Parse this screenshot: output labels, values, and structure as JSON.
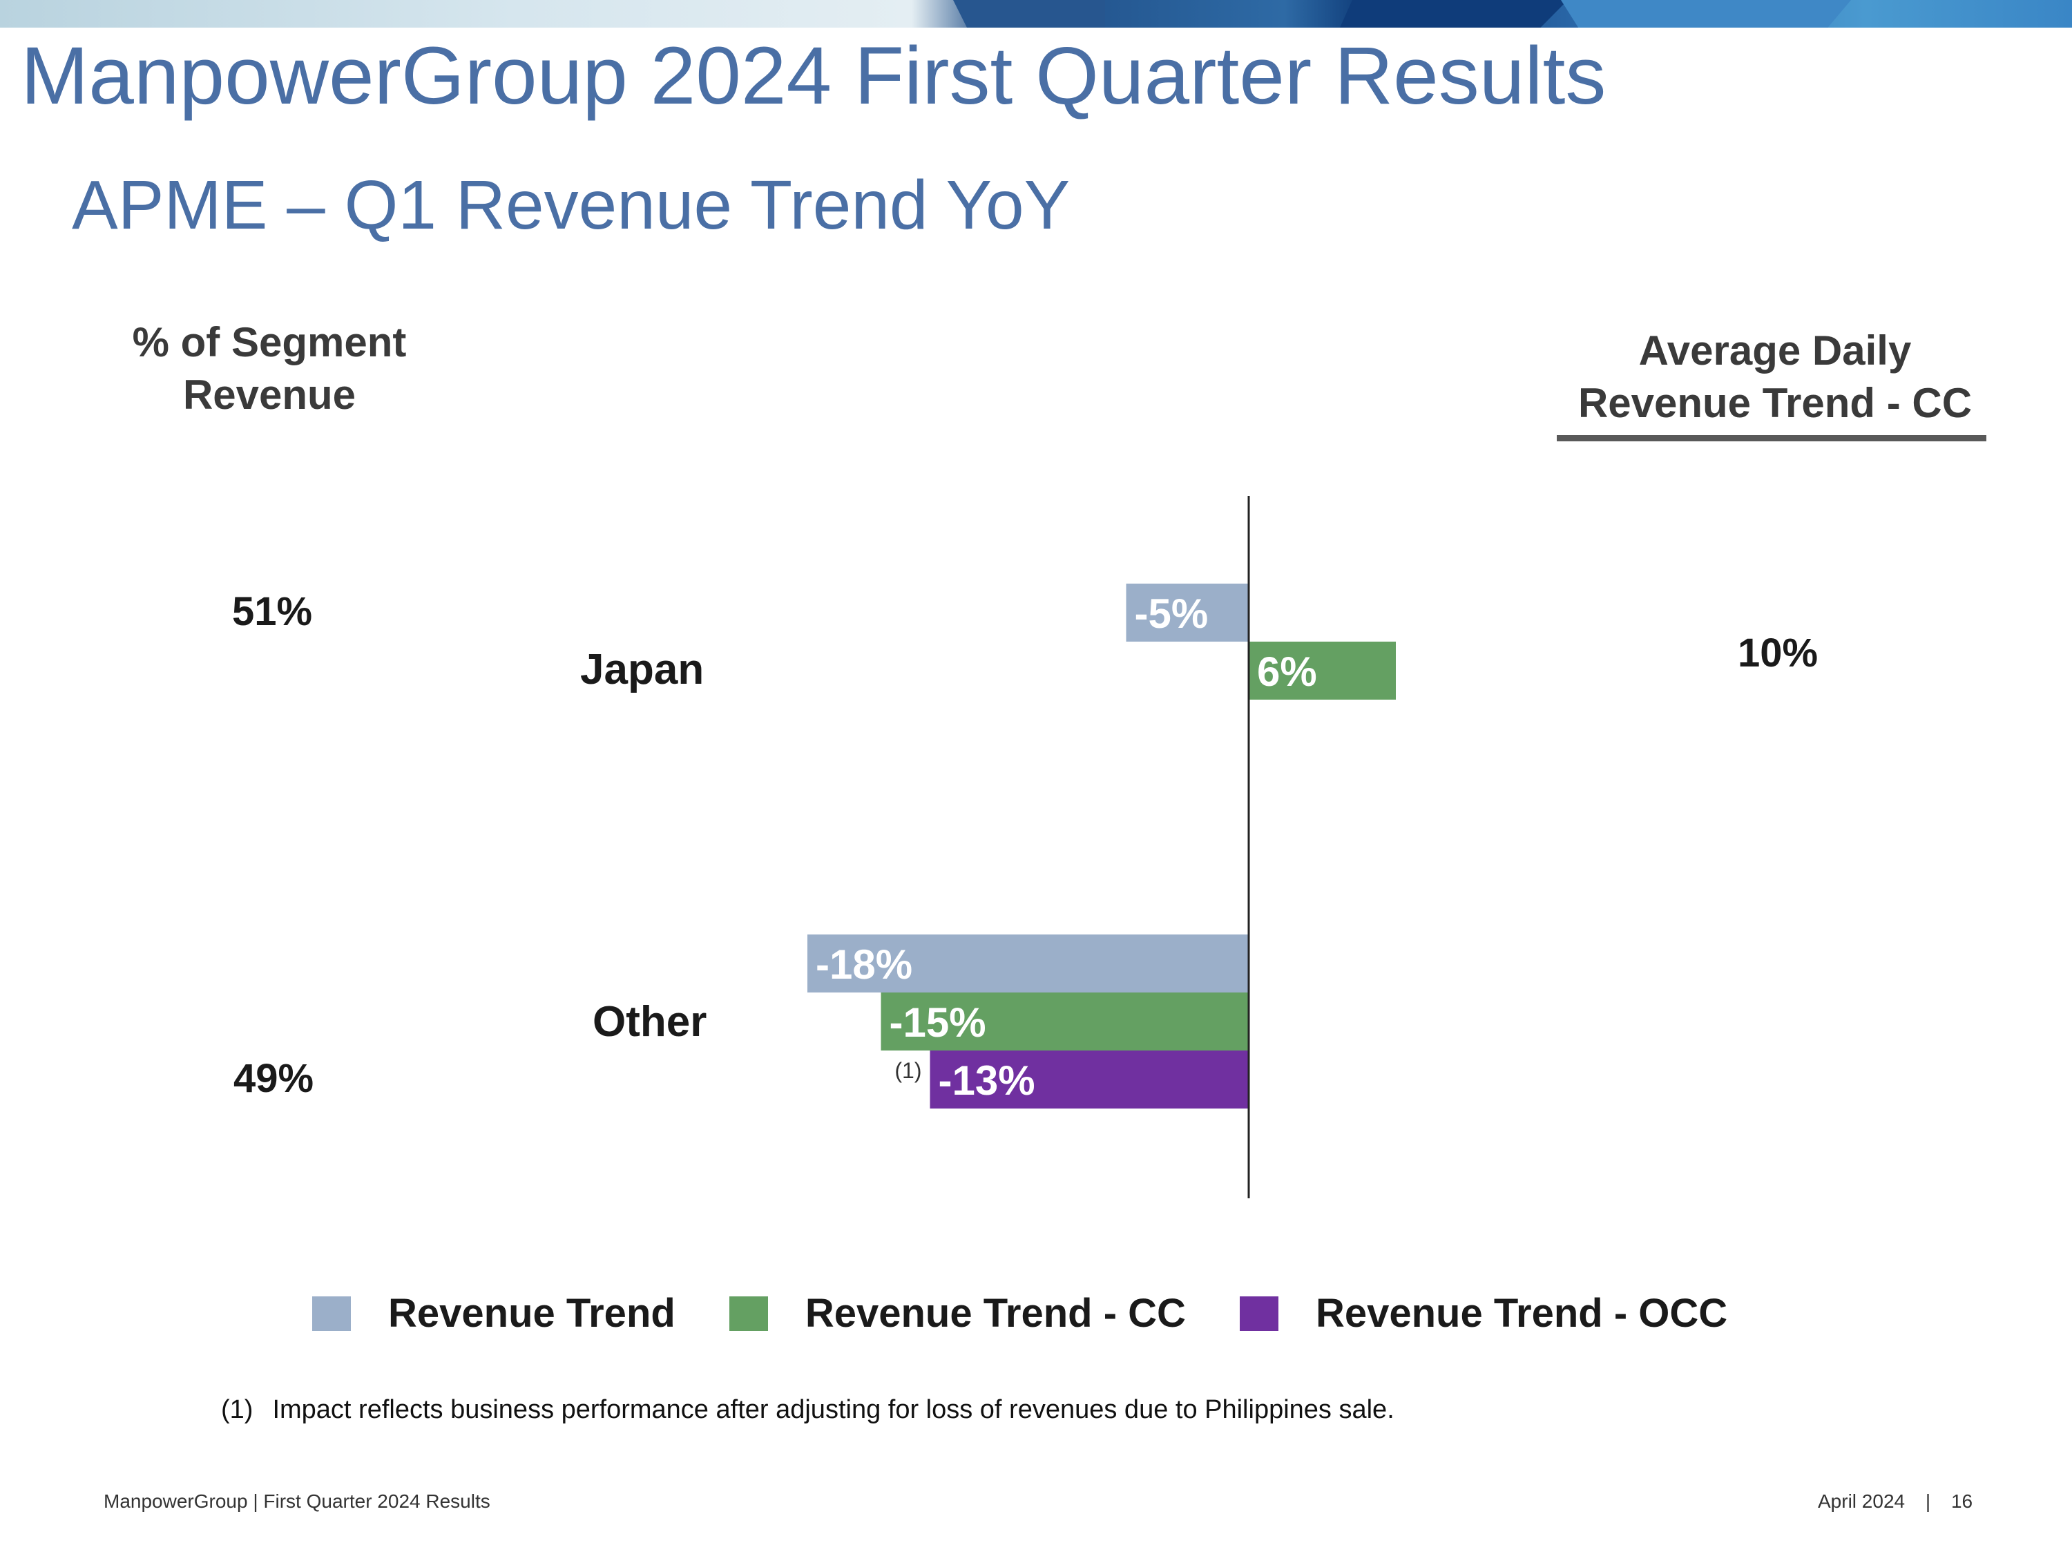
{
  "header": {
    "title": "ManpowerGroup 2024 First Quarter Results",
    "subtitle": "APME – Q1 Revenue Trend YoY"
  },
  "left_column": {
    "heading": "% of Segment Revenue",
    "values": [
      "51%",
      "49%"
    ]
  },
  "right_column": {
    "heading": "Average Daily Revenue Trend - CC",
    "values": [
      "10%"
    ]
  },
  "chart_data": {
    "type": "bar",
    "orientation": "horizontal",
    "categories": [
      "Japan",
      "Other"
    ],
    "series": [
      {
        "name": "Revenue Trend",
        "color": "#9bafc9",
        "values": [
          -5,
          -18
        ],
        "labels": [
          "-5%",
          "-18%"
        ]
      },
      {
        "name": "Revenue Trend - CC",
        "color": "#64a062",
        "values": [
          6,
          -15
        ],
        "labels": [
          "6%",
          "-15%"
        ]
      },
      {
        "name": "Revenue Trend - OCC",
        "color": "#7030a0",
        "values": [
          null,
          -13
        ],
        "labels": [
          null,
          "-13%"
        ]
      }
    ],
    "annotations": [
      {
        "category": "Other",
        "series": "Revenue Trend - OCC",
        "text": "(1)"
      }
    ],
    "legend": "bottom",
    "grid": false
  },
  "footnote": {
    "marker": "(1)",
    "text": "Impact reflects business performance after adjusting for loss of revenues due to Philippines sale."
  },
  "footer": {
    "left": "ManpowerGroup  |  First Quarter 2024 Results",
    "date": "April 2024",
    "separator": "|",
    "page": "16"
  },
  "colors": {
    "title": "#4a6fa5",
    "revenue_trend": "#9bafc9",
    "revenue_trend_cc": "#64a062",
    "revenue_trend_occ": "#7030a0"
  }
}
